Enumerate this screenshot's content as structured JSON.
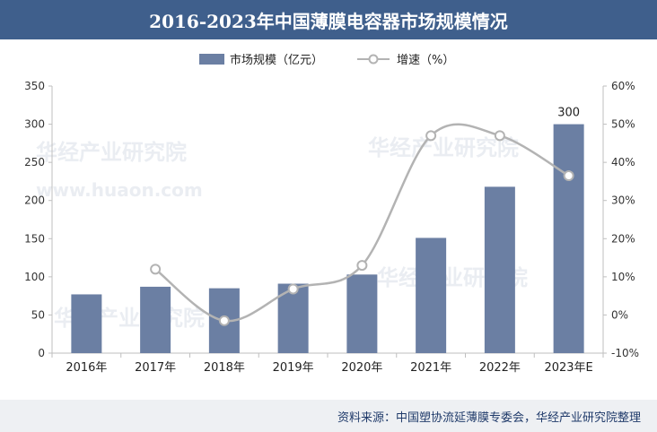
{
  "title": "2016-2023年中国薄膜电容器市场规模情况",
  "source": "资料来源：中国塑协流延薄膜专委会，华经产业研究院整理",
  "watermark": {
    "name": "华经产业研究院",
    "url": "www.huaon.com"
  },
  "colors": {
    "bar": "#6b7fa3",
    "line": "#b3b3b3",
    "title_bg": "#3f5f8c",
    "source_bg": "#eef0f3"
  },
  "chart_data": {
    "type": "bar",
    "categories": [
      "2016年",
      "2017年",
      "2018年",
      "2019年",
      "2020年",
      "2021年",
      "2022年",
      "2023年E"
    ],
    "series": [
      {
        "name": "市场规模（亿元）",
        "type": "bar",
        "axis": "left",
        "values": [
          77,
          87,
          85,
          91,
          103,
          151,
          218,
          300
        ]
      },
      {
        "name": "增速（%）",
        "type": "line",
        "axis": "right",
        "values": [
          null,
          12,
          -1.5,
          6.8,
          13,
          47,
          47,
          36.5
        ]
      }
    ],
    "data_labels": [
      {
        "category": "2023年E",
        "series": "市场规模（亿元）",
        "text": "300"
      }
    ],
    "y_left": {
      "min": 0,
      "max": 350,
      "ticks": [
        "0",
        "50",
        "100",
        "150",
        "200",
        "250",
        "300",
        "350"
      ]
    },
    "y_right": {
      "min": -10,
      "max": 60,
      "ticks": [
        "-10%",
        "0%",
        "10%",
        "20%",
        "30%",
        "40%",
        "50%",
        "60%"
      ]
    },
    "legend_position": "top-center",
    "grid": false
  }
}
